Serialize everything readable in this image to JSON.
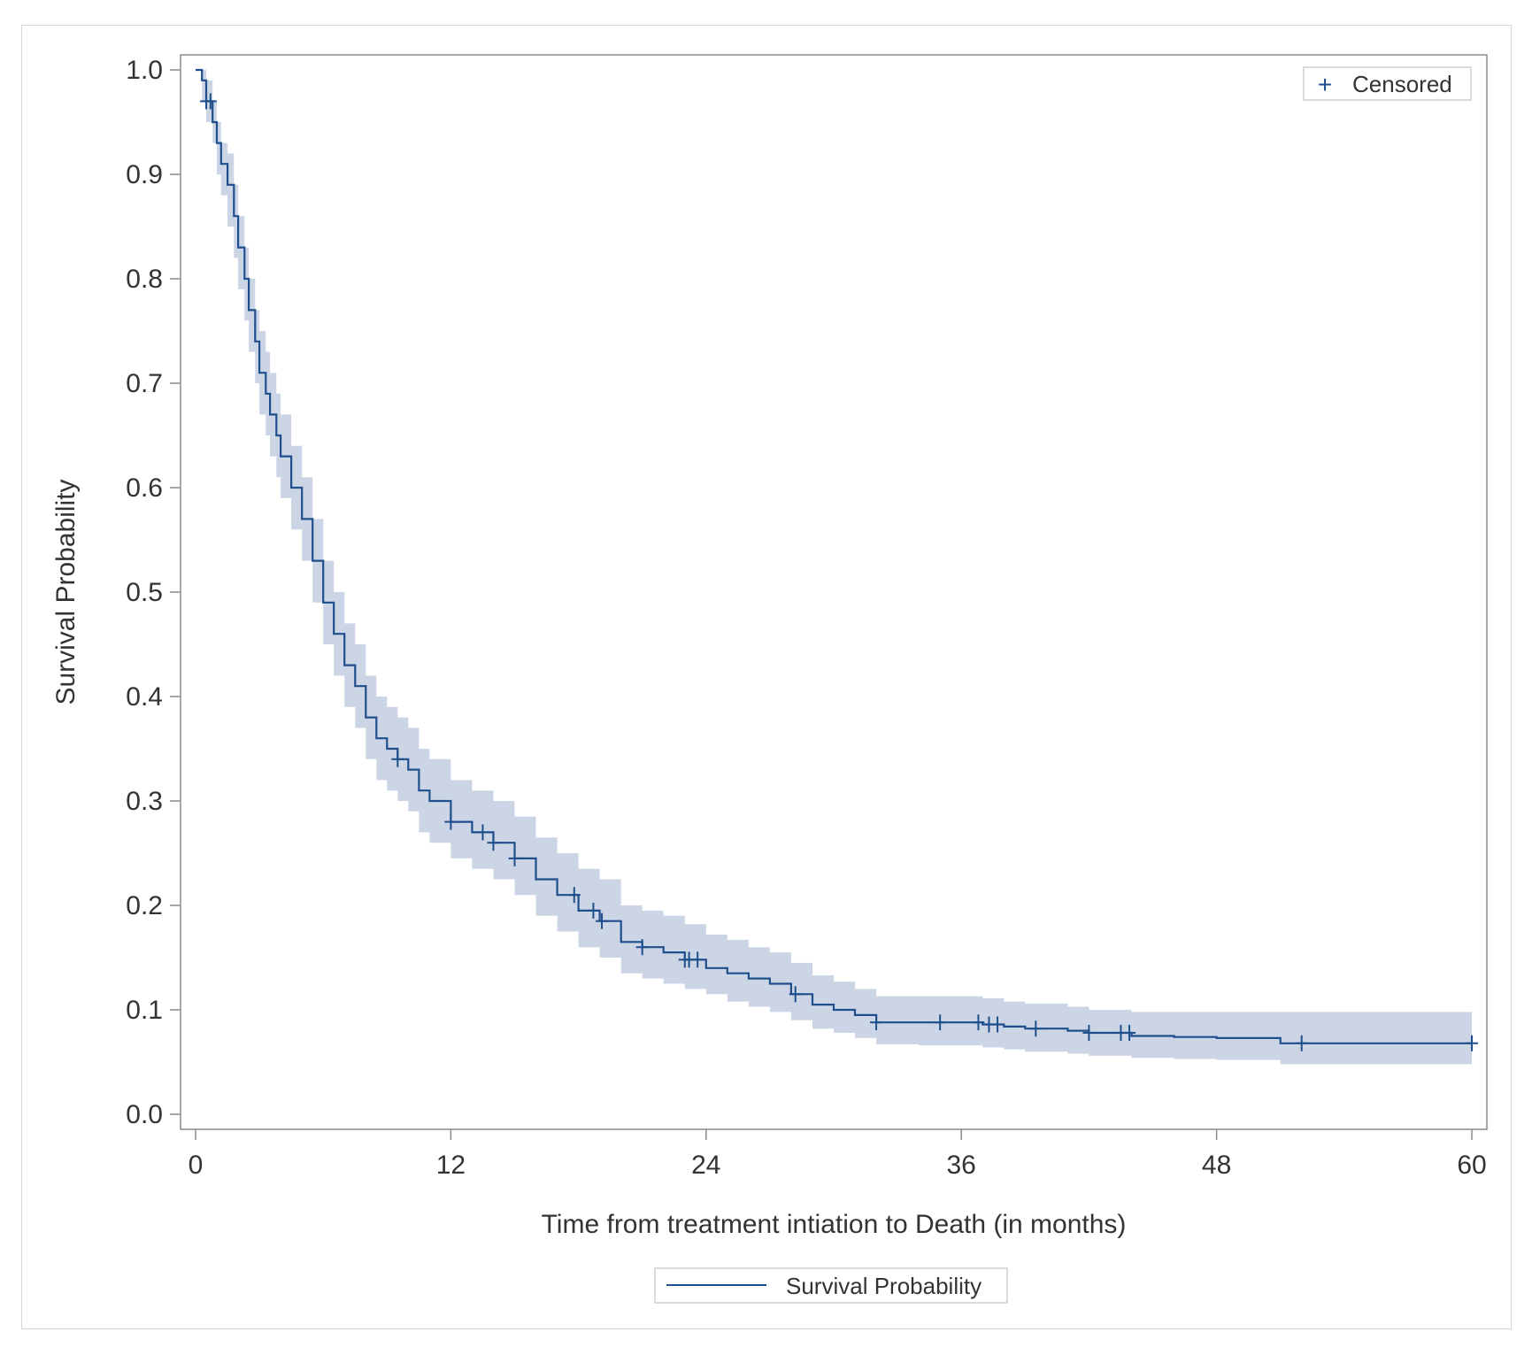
{
  "chart_data": {
    "type": "line",
    "xlabel": "Time from treatment intiation to Death (in months)",
    "ylabel": "Survival Probability",
    "xlim": [
      0,
      60
    ],
    "ylim": [
      0,
      1
    ],
    "x_ticks": [
      "0",
      "12",
      "24",
      "36",
      "48",
      "60"
    ],
    "y_ticks": [
      "0.0",
      "0.1",
      "0.2",
      "0.3",
      "0.4",
      "0.5",
      "0.6",
      "0.7",
      "0.8",
      "0.9",
      "1.0"
    ],
    "grid": false,
    "legend_top": {
      "entry": "Censored",
      "placement": "top-right",
      "marker": "+"
    },
    "legend_bottom": {
      "entry": "Survival Probability",
      "placement": "bottom-center"
    },
    "colors": {
      "line": "#1f4e8c",
      "band": "#c9d3e5",
      "axis": "#8a8a8a",
      "text": "#333333"
    },
    "series": [
      {
        "name": "Survival Probability",
        "x": [
          0,
          0.3,
          0.5,
          0.8,
          1.0,
          1.2,
          1.5,
          1.8,
          2.0,
          2.3,
          2.5,
          2.8,
          3.0,
          3.3,
          3.5,
          3.8,
          4.0,
          4.5,
          5.0,
          5.5,
          6.0,
          6.5,
          7.0,
          7.5,
          8.0,
          8.5,
          9.0,
          9.5,
          10.0,
          10.5,
          11.0,
          12.0,
          13.0,
          14.0,
          15.0,
          16.0,
          17.0,
          18.0,
          19.0,
          20.0,
          21.0,
          22.0,
          23.0,
          24.0,
          25.0,
          26.0,
          27.0,
          28.0,
          29.0,
          30.0,
          31.0,
          32.0,
          34.0,
          36.0,
          37.0,
          38.0,
          39.0,
          41.0,
          42.0,
          44.0,
          46.0,
          48.0,
          50.0,
          51.0,
          52.0,
          54.0,
          56.0,
          58.0,
          60.0
        ],
        "y": [
          1.0,
          0.99,
          0.97,
          0.95,
          0.93,
          0.91,
          0.89,
          0.86,
          0.83,
          0.8,
          0.77,
          0.74,
          0.71,
          0.69,
          0.67,
          0.65,
          0.63,
          0.6,
          0.57,
          0.53,
          0.49,
          0.46,
          0.43,
          0.41,
          0.38,
          0.36,
          0.35,
          0.34,
          0.33,
          0.31,
          0.3,
          0.28,
          0.27,
          0.26,
          0.245,
          0.225,
          0.21,
          0.195,
          0.185,
          0.165,
          0.16,
          0.155,
          0.148,
          0.14,
          0.135,
          0.13,
          0.125,
          0.115,
          0.105,
          0.1,
          0.095,
          0.088,
          0.088,
          0.088,
          0.086,
          0.084,
          0.082,
          0.08,
          0.078,
          0.075,
          0.074,
          0.073,
          0.073,
          0.068,
          0.068,
          0.068,
          0.068,
          0.068,
          0.068
        ],
        "ci_lower": [
          1.0,
          0.97,
          0.95,
          0.93,
          0.9,
          0.88,
          0.85,
          0.82,
          0.79,
          0.76,
          0.73,
          0.7,
          0.67,
          0.65,
          0.63,
          0.61,
          0.59,
          0.56,
          0.53,
          0.49,
          0.45,
          0.42,
          0.39,
          0.37,
          0.34,
          0.32,
          0.31,
          0.3,
          0.29,
          0.27,
          0.26,
          0.245,
          0.235,
          0.225,
          0.21,
          0.19,
          0.175,
          0.16,
          0.15,
          0.135,
          0.13,
          0.125,
          0.12,
          0.115,
          0.108,
          0.103,
          0.098,
          0.09,
          0.082,
          0.078,
          0.073,
          0.067,
          0.066,
          0.066,
          0.064,
          0.062,
          0.06,
          0.058,
          0.056,
          0.054,
          0.053,
          0.052,
          0.052,
          0.048,
          0.048,
          0.048,
          0.048,
          0.048,
          0.048
        ],
        "ci_upper": [
          1.0,
          1.0,
          0.99,
          0.97,
          0.95,
          0.93,
          0.92,
          0.89,
          0.86,
          0.83,
          0.8,
          0.77,
          0.75,
          0.73,
          0.71,
          0.69,
          0.67,
          0.64,
          0.61,
          0.57,
          0.53,
          0.5,
          0.47,
          0.45,
          0.42,
          0.4,
          0.39,
          0.38,
          0.37,
          0.35,
          0.34,
          0.32,
          0.31,
          0.3,
          0.285,
          0.265,
          0.25,
          0.235,
          0.225,
          0.2,
          0.195,
          0.19,
          0.182,
          0.172,
          0.167,
          0.16,
          0.155,
          0.145,
          0.133,
          0.127,
          0.12,
          0.113,
          0.113,
          0.113,
          0.111,
          0.108,
          0.106,
          0.103,
          0.1,
          0.098,
          0.098,
          0.098,
          0.098,
          0.098,
          0.098,
          0.098,
          0.098,
          0.098,
          0.098
        ]
      }
    ],
    "censored_x": [
      0.5,
      0.7,
      9.5,
      12.0,
      13.5,
      14.0,
      15.0,
      17.8,
      18.7,
      19.1,
      21.0,
      23.0,
      23.2,
      23.6,
      28.2,
      32.0,
      35.0,
      36.8,
      37.3,
      37.7,
      39.5,
      42.0,
      43.5,
      43.9,
      52.0,
      60.0
    ]
  }
}
